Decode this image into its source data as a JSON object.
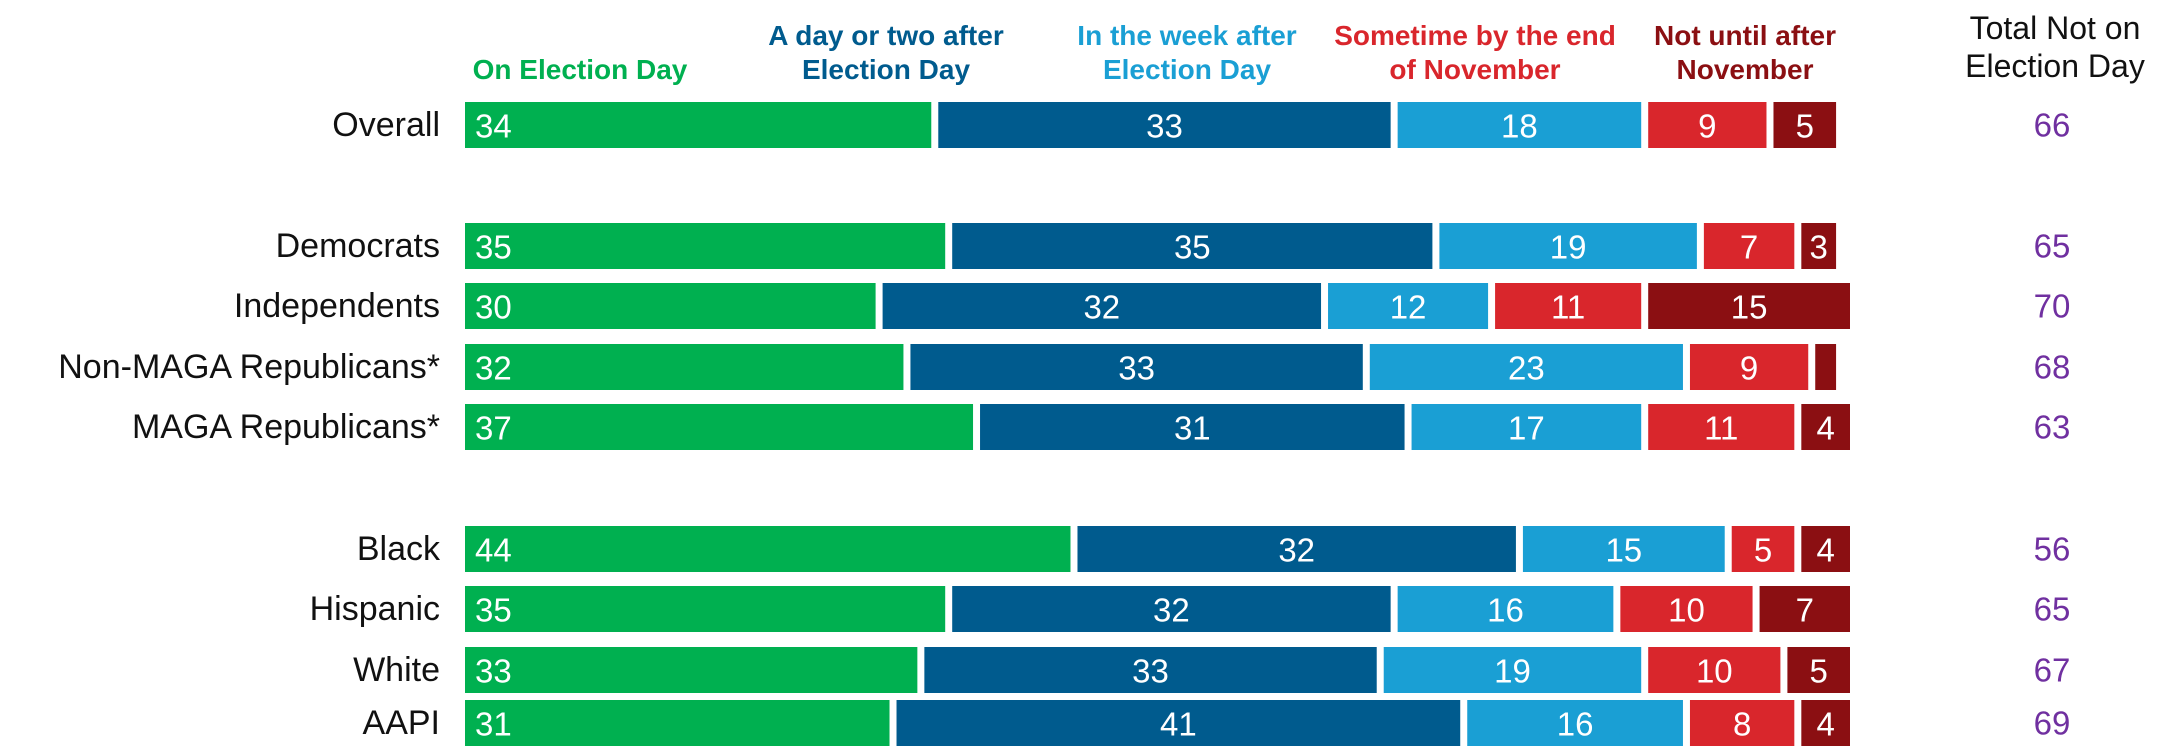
{
  "chart_data": {
    "type": "stacked-bar",
    "categories": [
      "Overall",
      "Democrats",
      "Independents",
      "Non-MAGA Republicans*",
      "MAGA Republicans*",
      "Black",
      "Hispanic",
      "White",
      "AAPI"
    ],
    "series": [
      {
        "name": "On Election Day",
        "color": "#00b050",
        "values": [
          34,
          35,
          30,
          32,
          37,
          44,
          35,
          33,
          31
        ]
      },
      {
        "name": "A day or two after Election Day",
        "color": "#005b8e",
        "values": [
          33,
          35,
          32,
          33,
          31,
          32,
          32,
          33,
          41
        ]
      },
      {
        "name": "In the week after Election Day",
        "color": "#1a9fd4",
        "values": [
          18,
          19,
          12,
          23,
          17,
          15,
          16,
          19,
          16
        ]
      },
      {
        "name": "Sometime by the end of November",
        "color": "#d9262c",
        "values": [
          9,
          7,
          11,
          9,
          11,
          5,
          10,
          10,
          8
        ]
      },
      {
        "name": "Not until after November",
        "color": "#8b0f12",
        "values": [
          5,
          3,
          15,
          2,
          4,
          4,
          7,
          5,
          4
        ],
        "value_labels": [
          "5",
          "3",
          "15",
          null,
          "4",
          "4",
          "7",
          "5",
          "4"
        ]
      }
    ],
    "totals": {
      "label": "Total Not on Election Day",
      "color": "#7030a0",
      "values": [
        66,
        65,
        70,
        68,
        63,
        56,
        65,
        67,
        69
      ]
    },
    "xlim": [
      0,
      100
    ]
  }
}
